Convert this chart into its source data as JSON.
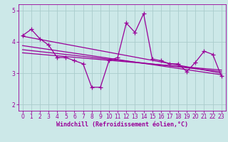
{
  "title": "",
  "xlabel": "Windchill (Refroidissement éolien,°C)",
  "ylabel": "",
  "bg_color": "#cce8e8",
  "grid_color": "#aacccc",
  "line_color": "#990099",
  "marker": "+",
  "xlim": [
    -0.5,
    23.5
  ],
  "ylim": [
    1.8,
    5.2
  ],
  "yticks": [
    2,
    3,
    4,
    5
  ],
  "xticks": [
    0,
    1,
    2,
    3,
    4,
    5,
    6,
    7,
    8,
    9,
    10,
    11,
    12,
    13,
    14,
    15,
    16,
    17,
    18,
    19,
    20,
    21,
    22,
    23
  ],
  "data_y": [
    4.2,
    4.4,
    4.1,
    3.9,
    3.5,
    3.5,
    3.4,
    3.3,
    2.55,
    2.55,
    3.4,
    3.5,
    4.6,
    4.3,
    4.9,
    3.45,
    3.4,
    3.3,
    3.3,
    3.05,
    3.35,
    3.7,
    3.6,
    2.9
  ],
  "trend_lines": [
    {
      "x0": 0,
      "y0": 4.18,
      "x1": 23,
      "y1": 3.0
    },
    {
      "x0": 0,
      "y0": 3.88,
      "x1": 23,
      "y1": 2.95
    },
    {
      "x0": 0,
      "y0": 3.75,
      "x1": 23,
      "y1": 3.05
    },
    {
      "x0": 0,
      "y0": 3.65,
      "x1": 23,
      "y1": 3.1
    }
  ],
  "tick_fontsize": 5.5,
  "label_fontsize": 6.0,
  "line_width": 0.9,
  "marker_size": 4,
  "fig_width": 3.2,
  "fig_height": 2.0,
  "dpi": 100
}
